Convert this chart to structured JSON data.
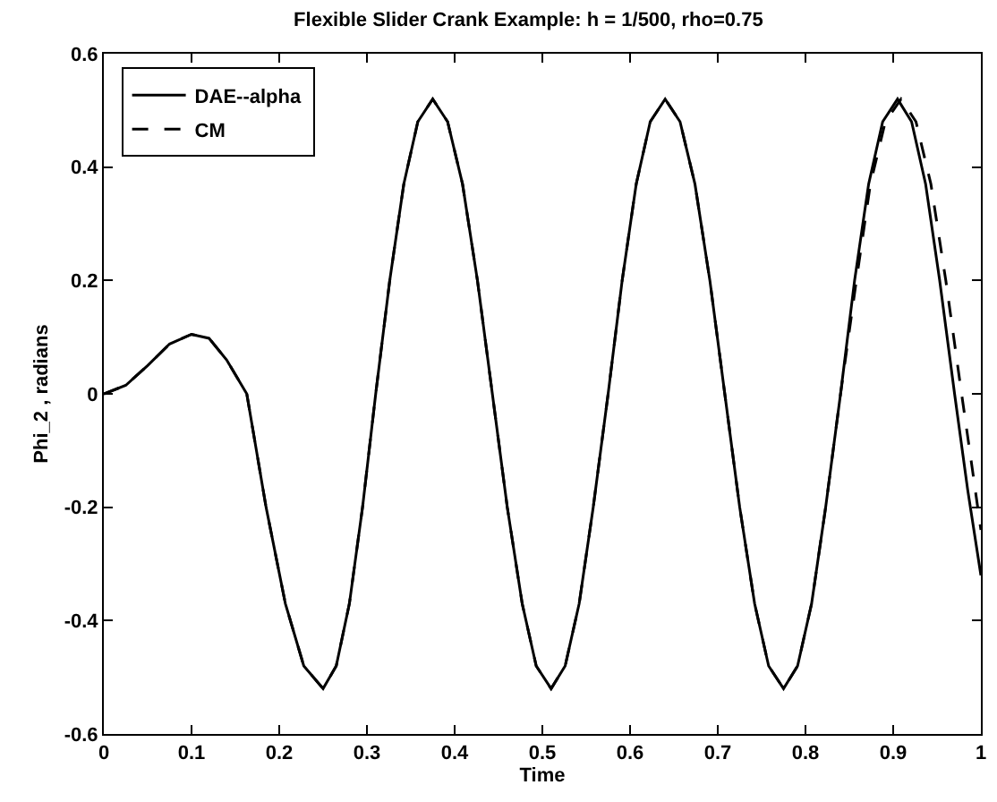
{
  "chart_data": {
    "type": "line",
    "title": "Flexible Slider Crank Example: h = 1/500, rho=0.75",
    "xlabel": "Time",
    "ylabel": "Phi_2 , radians",
    "xlim": [
      0,
      1
    ],
    "xticks": [
      0,
      0.1,
      0.2,
      0.3,
      0.4,
      0.5,
      0.6,
      0.7,
      0.8,
      0.9,
      1
    ],
    "ylim": [
      -0.6,
      0.6
    ],
    "yticks": [
      -0.6,
      -0.4,
      -0.2,
      0,
      0.2,
      0.4,
      0.6
    ],
    "grid": false,
    "legend": "top left",
    "marker": "none",
    "series": [
      {
        "name": "DAE--alpha",
        "color": "#000000",
        "line_style": "solid",
        "x": [
          0,
          0.025,
          0.05,
          0.075,
          0.1,
          0.12,
          0.14,
          0.163,
          0.185,
          0.207,
          0.228,
          0.25,
          0.265,
          0.28,
          0.295,
          0.31,
          0.326,
          0.342,
          0.358,
          0.375,
          0.392,
          0.409,
          0.426,
          0.443,
          0.46,
          0.477,
          0.493,
          0.51,
          0.526,
          0.542,
          0.558,
          0.575,
          0.591,
          0.607,
          0.623,
          0.64,
          0.657,
          0.674,
          0.691,
          0.708,
          0.725,
          0.742,
          0.758,
          0.775,
          0.791,
          0.807,
          0.823,
          0.84,
          0.856,
          0.872,
          0.888,
          0.905,
          0.921,
          0.937,
          0.953,
          0.97,
          0.985,
          1
        ],
        "values": [
          0,
          0.015,
          0.05,
          0.088,
          0.105,
          0.098,
          0.06,
          0,
          -0.2,
          -0.37,
          -0.48,
          -0.52,
          -0.48,
          -0.37,
          -0.2,
          0,
          0.2,
          0.37,
          0.48,
          0.52,
          0.48,
          0.37,
          0.2,
          0,
          -0.2,
          -0.37,
          -0.48,
          -0.52,
          -0.48,
          -0.37,
          -0.2,
          0,
          0.2,
          0.37,
          0.48,
          0.52,
          0.48,
          0.37,
          0.2,
          0,
          -0.2,
          -0.37,
          -0.48,
          -0.52,
          -0.48,
          -0.37,
          -0.2,
          0,
          0.2,
          0.37,
          0.48,
          0.52,
          0.48,
          0.37,
          0.2,
          0,
          -0.17,
          -0.32
        ]
      },
      {
        "name": "CM",
        "color": "#000000",
        "line_style": "dashed",
        "x": [
          0,
          0.025,
          0.05,
          0.075,
          0.1,
          0.12,
          0.14,
          0.163,
          0.185,
          0.207,
          0.228,
          0.25,
          0.265,
          0.28,
          0.295,
          0.31,
          0.326,
          0.342,
          0.358,
          0.375,
          0.392,
          0.409,
          0.426,
          0.443,
          0.46,
          0.477,
          0.493,
          0.51,
          0.526,
          0.542,
          0.558,
          0.575,
          0.591,
          0.607,
          0.623,
          0.64,
          0.657,
          0.674,
          0.691,
          0.708,
          0.725,
          0.742,
          0.758,
          0.775,
          0.791,
          0.807,
          0.823,
          0.84,
          0.858,
          0.874,
          0.891,
          0.909,
          0.926,
          0.943,
          0.96,
          0.978,
          0.99,
          1
        ],
        "values": [
          0,
          0.015,
          0.05,
          0.088,
          0.105,
          0.098,
          0.06,
          0,
          -0.2,
          -0.37,
          -0.48,
          -0.52,
          -0.48,
          -0.37,
          -0.2,
          0,
          0.2,
          0.37,
          0.48,
          0.52,
          0.48,
          0.37,
          0.2,
          0,
          -0.2,
          -0.37,
          -0.48,
          -0.52,
          -0.48,
          -0.37,
          -0.2,
          0,
          0.2,
          0.37,
          0.48,
          0.52,
          0.48,
          0.37,
          0.2,
          0,
          -0.2,
          -0.37,
          -0.48,
          -0.52,
          -0.48,
          -0.37,
          -0.2,
          0,
          0.2,
          0.37,
          0.48,
          0.52,
          0.48,
          0.37,
          0.2,
          0,
          -0.13,
          -0.24
        ]
      }
    ]
  }
}
